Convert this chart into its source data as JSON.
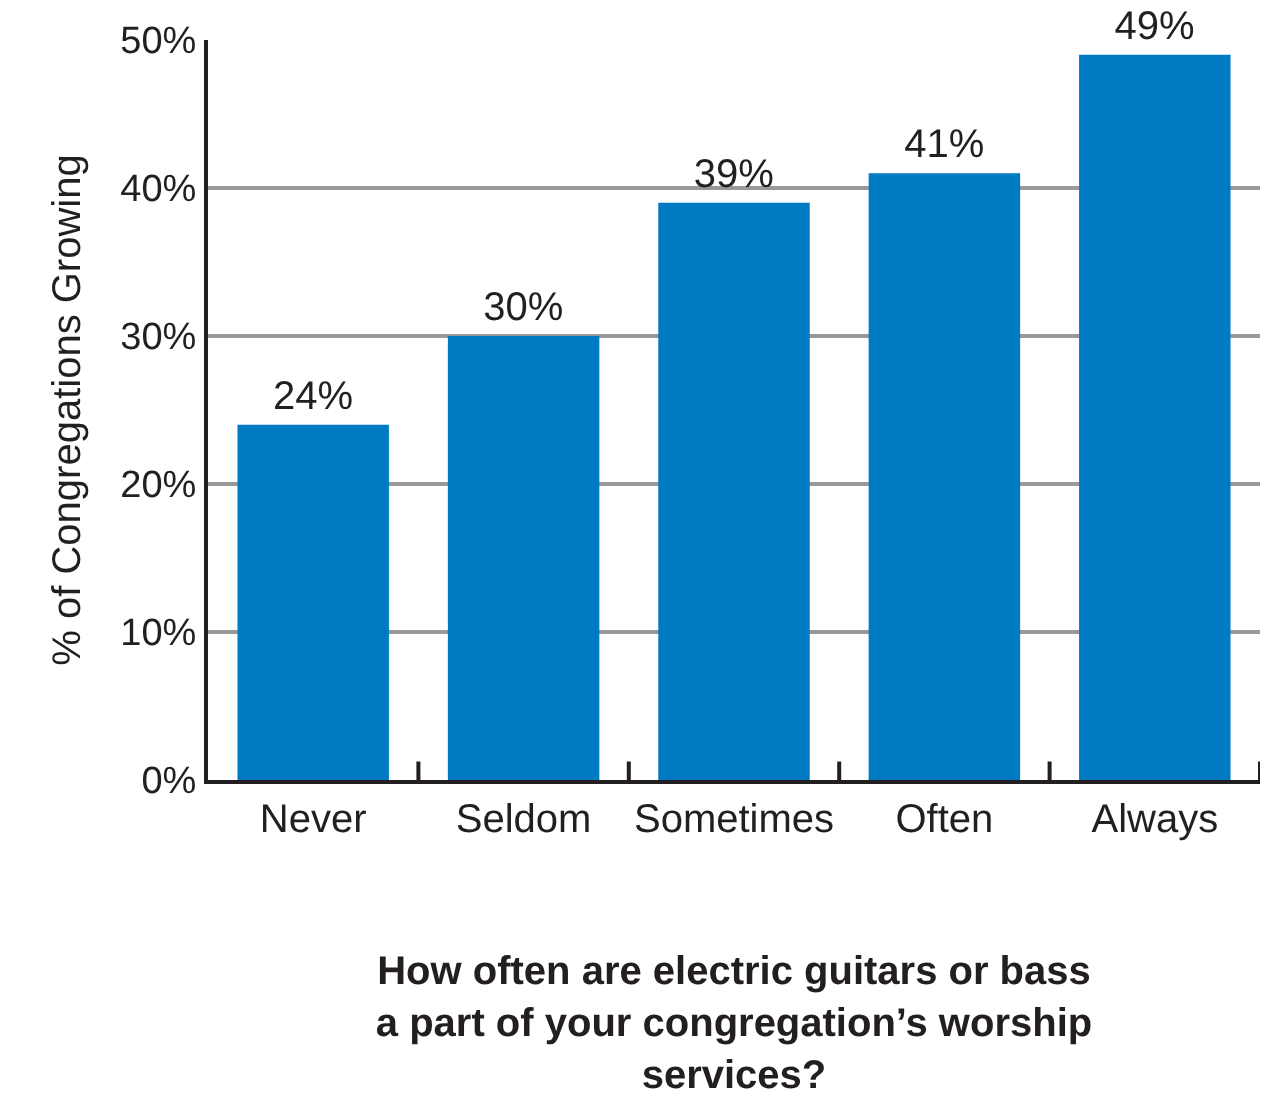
{
  "chart_data": {
    "type": "bar",
    "xlabel": "How often are electric guitars or bass a part of your congregation’s worship services?",
    "ylabel": "% of Congregations Growing",
    "categories": [
      "Never",
      "Seldom",
      "Sometimes",
      "Often",
      "Always"
    ],
    "values": [
      24,
      30,
      39,
      41,
      49
    ],
    "value_labels": [
      "24%",
      "30%",
      "39%",
      "41%",
      "49%"
    ],
    "color": "#007ac2",
    "ylim": [
      0,
      50
    ],
    "yticks": [
      {
        "value": 0,
        "label": "0%"
      },
      {
        "value": 10,
        "label": "10%"
      },
      {
        "value": 20,
        "label": "20%"
      },
      {
        "value": 30,
        "label": "30%"
      },
      {
        "value": 40,
        "label": "40%"
      },
      {
        "value": 50,
        "label": "50%"
      }
    ],
    "grid": "y"
  }
}
